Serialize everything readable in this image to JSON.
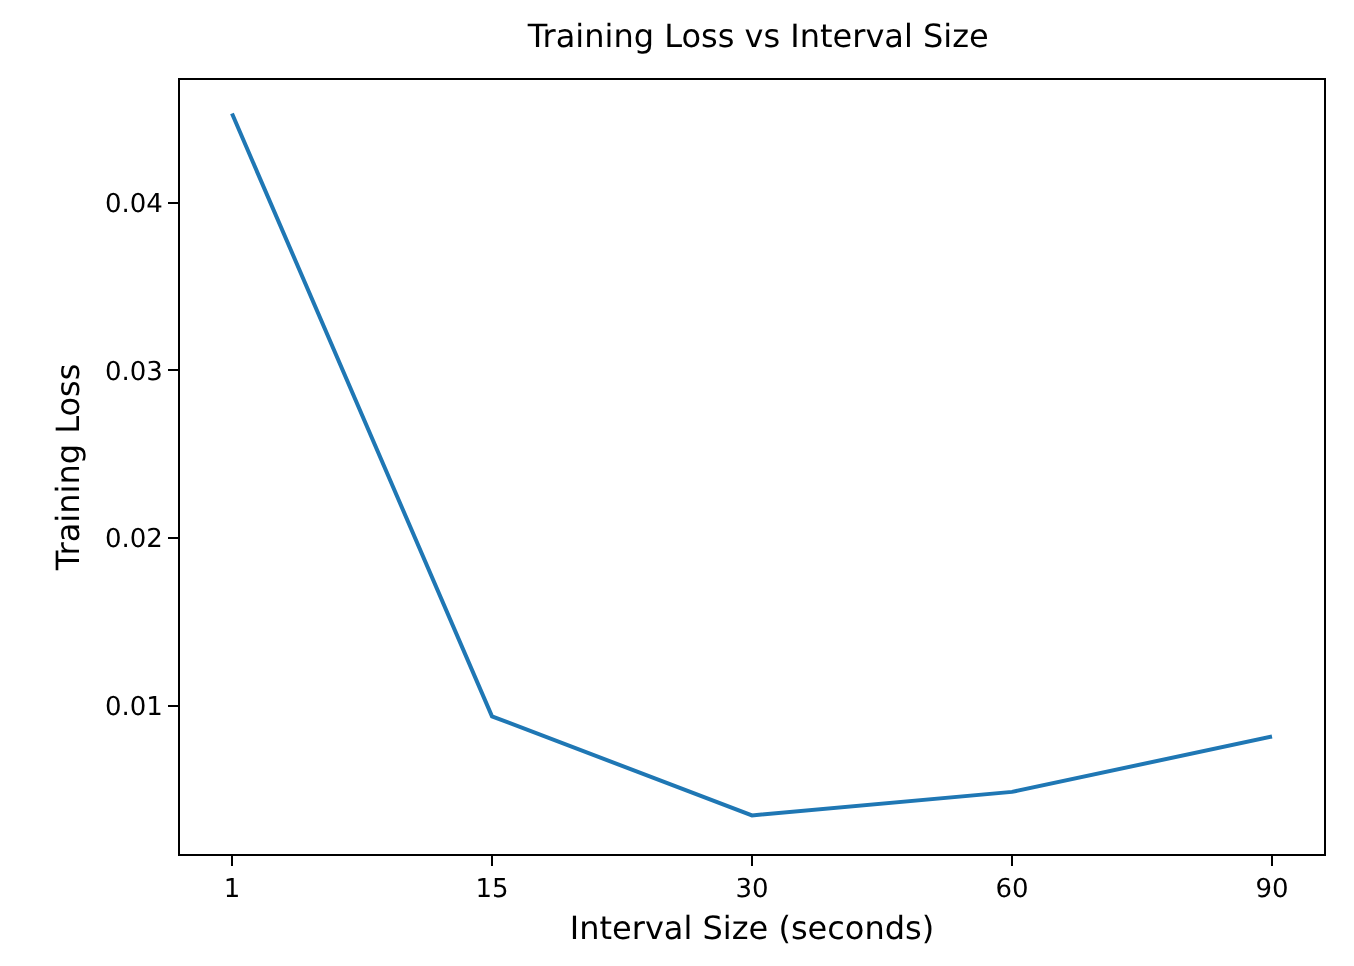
{
  "chart_data": {
    "type": "line",
    "title": "Training Loss vs Interval Size",
    "xlabel": "Interval Size (seconds)",
    "ylabel": "Training Loss",
    "categories": [
      "1",
      "15",
      "30",
      "60",
      "90"
    ],
    "series": [
      {
        "color": "#1f77b4",
        "values": [
          0.0453,
          0.0094,
          0.0035,
          0.0049,
          0.0082
        ]
      }
    ],
    "ylim": [
      0.0012,
      0.0473
    ],
    "yticks": [
      {
        "value": 0.01,
        "label": "0.01"
      },
      {
        "value": 0.02,
        "label": "0.02"
      },
      {
        "value": 0.03,
        "label": "0.03"
      },
      {
        "value": 0.04,
        "label": "0.04"
      }
    ],
    "grid": false,
    "marker": "none",
    "line_style": "solid"
  }
}
